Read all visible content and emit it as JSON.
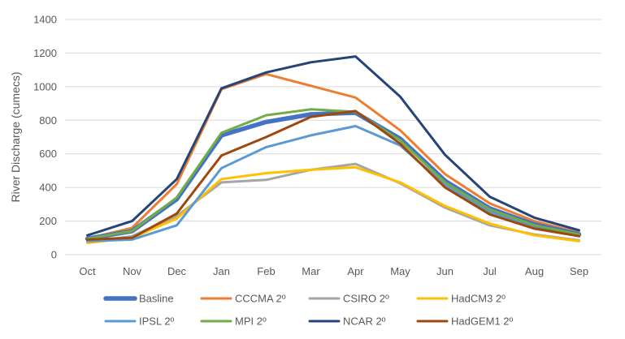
{
  "chart_data": {
    "type": "line",
    "title": "",
    "xlabel": "",
    "ylabel": "River Discharge (cumecs)",
    "ylim": [
      0,
      1400
    ],
    "yticks": [
      0,
      200,
      400,
      600,
      800,
      1000,
      1200,
      1400
    ],
    "grid": true,
    "legend_position": "bottom",
    "categories": [
      "Oct",
      "Nov",
      "Dec",
      "Jan",
      "Feb",
      "Mar",
      "Apr",
      "May",
      "Jun",
      "Jul",
      "Aug",
      "Sep"
    ],
    "series": [
      {
        "name": "Basline",
        "color": "#4472C4",
        "values": [
          95,
          140,
          330,
          710,
          790,
          835,
          845,
          690,
          440,
          275,
          180,
          120
        ]
      },
      {
        "name": "CCCMA 2º",
        "color": "#ED7D31",
        "values": [
          95,
          160,
          420,
          985,
          1075,
          1005,
          935,
          740,
          480,
          305,
          200,
          130
        ]
      },
      {
        "name": "CSIRO 2º",
        "color": "#A5A5A5",
        "values": [
          75,
          110,
          230,
          430,
          445,
          505,
          540,
          425,
          280,
          175,
          120,
          85
        ]
      },
      {
        "name": "HadCM3 2º",
        "color": "#FFC000",
        "values": [
          70,
          100,
          215,
          450,
          485,
          505,
          520,
          430,
          290,
          185,
          115,
          80
        ]
      },
      {
        "name": "IPSL 2º",
        "color": "#5B9BD5",
        "values": [
          80,
          90,
          175,
          515,
          640,
          710,
          765,
          650,
          415,
          255,
          165,
          110
        ]
      },
      {
        "name": "MPI  2º",
        "color": "#70AD47",
        "values": [
          95,
          140,
          340,
          725,
          830,
          865,
          850,
          680,
          430,
          270,
          175,
          120
        ]
      },
      {
        "name": "NCAR 2º",
        "color": "#264478",
        "values": [
          115,
          200,
          450,
          990,
          1085,
          1145,
          1180,
          940,
          595,
          345,
          220,
          145
        ]
      },
      {
        "name": "HadGEM1 2º",
        "color": "#9E480E",
        "values": [
          90,
          100,
          245,
          590,
          700,
          820,
          855,
          660,
          400,
          240,
          155,
          110
        ]
      }
    ]
  }
}
